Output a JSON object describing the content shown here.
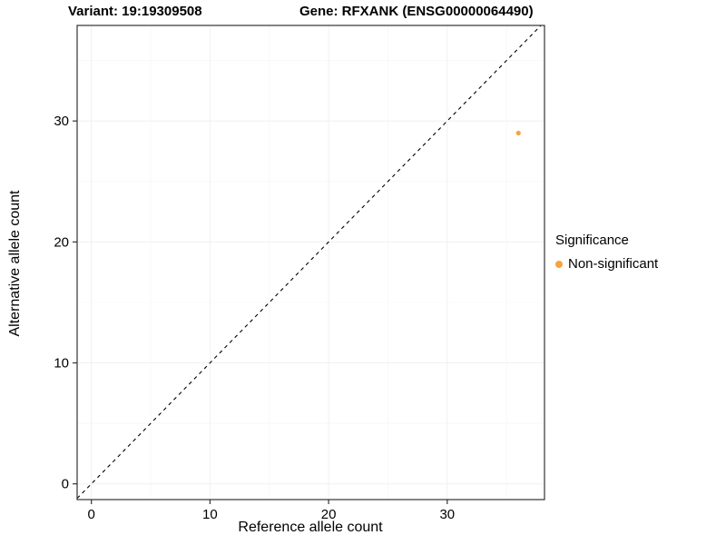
{
  "chart_data": {
    "type": "scatter",
    "title_variant": "Variant: 19:19309508",
    "title_gene": "Gene: RFXANK (ENSG00000064490)",
    "xlabel": "Reference allele count",
    "ylabel": "Alternative allele count",
    "xlim": [
      -1.2,
      38.2
    ],
    "ylim": [
      -1.3,
      37.9
    ],
    "xticks": [
      0,
      10,
      20,
      30
    ],
    "yticks": [
      0,
      10,
      20,
      30
    ],
    "xminor": [
      5,
      15,
      25,
      35
    ],
    "yminor": [
      5,
      15,
      25,
      35
    ],
    "series": [
      {
        "name": "Non-significant",
        "color": "#F8A33C",
        "points": [
          {
            "x": 36,
            "y": 29
          }
        ]
      }
    ],
    "reference_line": {
      "kind": "identity",
      "equation": "y = x",
      "style": "dashed",
      "color": "#000000"
    },
    "grid": {
      "show": true,
      "major": "#F0F0F0",
      "minor": "#F8F8F8"
    },
    "panel_border_color": "#333333",
    "legend": {
      "title": "Significance",
      "position": "right",
      "entries": [
        {
          "label": "Non-significant",
          "color": "#F8A33C"
        }
      ]
    }
  }
}
